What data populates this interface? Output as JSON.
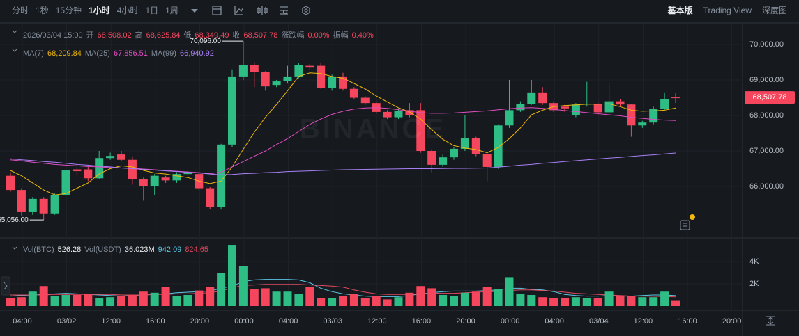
{
  "toolbar": {
    "intervals": [
      "分时",
      "1秒",
      "15分钟",
      "1小时",
      "4小时",
      "1日",
      "1周"
    ],
    "active": "1小时",
    "views": [
      "基本版",
      "Trading View",
      "深度图"
    ],
    "active_view": "基本版"
  },
  "chart_data": {
    "type": "candlestick",
    "watermark": "BINANCE",
    "legend": {
      "time": "2026/03/04 15:00",
      "items": [
        [
          "开",
          "68,508.02"
        ],
        [
          "高",
          "68,625.84"
        ],
        [
          "低",
          "68,349.49"
        ],
        [
          "收",
          "68,507.78"
        ],
        [
          "涨跌幅",
          "0.00%"
        ],
        [
          "振幅",
          "0.40%"
        ]
      ],
      "ma": [
        [
          "MA(7)",
          "68,209.84"
        ],
        [
          "MA(25)",
          "67,856.51"
        ],
        [
          "MA(99)",
          "66,940.92"
        ]
      ],
      "vol": [
        [
          "Vol(BTC)",
          "526.28"
        ],
        [
          "Vol(USDT)",
          "36.023M"
        ]
      ],
      "vol_ma": [
        "942.09",
        "824.65"
      ]
    },
    "high_label": "70,096.00",
    "low_label": "65,056.00",
    "last_price_label": "68,507.78",
    "up_color": "#2ebd85",
    "down_color": "#f6465d",
    "ylim": [
      64588,
      70569
    ],
    "yticks": [
      {
        "value": 70000,
        "label": "70,000.00"
      },
      {
        "value": 69000,
        "label": "69,000.00"
      },
      {
        "value": 68000,
        "label": "68,000.00"
      },
      {
        "value": 67000,
        "label": "67,000.00"
      },
      {
        "value": 66000,
        "label": "66,000.00"
      }
    ],
    "vlim": [
      0,
      5940
    ],
    "vticks": [
      {
        "value": 4000,
        "label": "4K"
      },
      {
        "value": 2000,
        "label": "2K"
      }
    ],
    "xticks": [
      "04:00",
      "03/02",
      "12:00",
      "16:00",
      "20:00",
      "00:00",
      "04:00",
      "03/03",
      "12:00",
      "16:00",
      "20:00",
      "00:00",
      "04:00",
      "03/04",
      "12:00",
      "16:00",
      "20:00"
    ],
    "open": [
      66300,
      65900,
      65275,
      65650,
      65240,
      65760,
      66480,
      66480,
      66230,
      66800,
      66900,
      66750,
      66200,
      66000,
      66250,
      66170,
      66350,
      66350,
      65950,
      65420,
      67180,
      69100,
      69430,
      69220,
      68860,
      68960,
      69100,
      69400,
      69400,
      68780,
      69100,
      68750,
      68500,
      68350,
      68100,
      67950,
      68150,
      68150,
      67000,
      66610,
      66820,
      67060,
      67370,
      66920,
      66550,
      67720,
      68150,
      68330,
      68650,
      68350,
      68250,
      68020,
      68310,
      68330,
      68090,
      68400,
      68310,
      67720,
      67800,
      68190,
      68508.02
    ],
    "high": [
      66400,
      65950,
      65700,
      65700,
      65800,
      66700,
      66650,
      66550,
      67000,
      66950,
      67000,
      66850,
      66250,
      66350,
      66300,
      66400,
      66450,
      66400,
      65980,
      67200,
      69300,
      70096,
      69500,
      69250,
      69000,
      69400,
      69480,
      69450,
      69480,
      69150,
      69200,
      68800,
      68550,
      68400,
      68150,
      68200,
      68350,
      68350,
      67050,
      66900,
      67100,
      68000,
      67400,
      66950,
      67750,
      69000,
      68400,
      69000,
      68800,
      68400,
      68300,
      68350,
      68950,
      68380,
      68900,
      68450,
      68330,
      67850,
      68250,
      68650,
      68625.84
    ],
    "low": [
      65850,
      65180,
      65200,
      65056,
      65200,
      65700,
      66300,
      66150,
      66200,
      66750,
      66700,
      66050,
      65600,
      65750,
      66100,
      66100,
      66300,
      65900,
      65350,
      65350,
      67100,
      69000,
      68800,
      68700,
      68800,
      68900,
      69050,
      69300,
      68750,
      68700,
      68700,
      68450,
      68300,
      68050,
      67900,
      67900,
      67950,
      66950,
      66400,
      66550,
      66750,
      67000,
      66850,
      66150,
      66500,
      67650,
      68100,
      68300,
      68300,
      68100,
      68100,
      67950,
      68250,
      68000,
      68050,
      68250,
      67400,
      67650,
      67750,
      68150,
      68349.49
    ],
    "close": [
      65900,
      65275,
      65650,
      65240,
      65760,
      66450,
      66430,
      66230,
      66800,
      66860,
      66750,
      66200,
      66000,
      66300,
      66170,
      66350,
      66400,
      65950,
      65420,
      67180,
      69100,
      69430,
      69220,
      68820,
      68960,
      69100,
      69430,
      69350,
      68780,
      69100,
      68750,
      68500,
      68350,
      68100,
      67950,
      68120,
      68020,
      67000,
      66610,
      66820,
      67060,
      67370,
      66920,
      66550,
      67720,
      68150,
      68330,
      68650,
      68350,
      68150,
      68200,
      68310,
      68330,
      68090,
      68400,
      68310,
      67720,
      67800,
      68190,
      68470,
      68507.78
    ],
    "volume": [
      700,
      800,
      1300,
      1800,
      900,
      1000,
      1000,
      1100,
      700,
      800,
      900,
      1000,
      1300,
      1200,
      1700,
      900,
      1000,
      1400,
      1700,
      3000,
      5500,
      3600,
      1500,
      1600,
      1300,
      1300,
      1100,
      1700,
      700,
      700,
      900,
      1100,
      700,
      900,
      600,
      800,
      1200,
      1800,
      1600,
      1000,
      900,
      1200,
      1300,
      1700,
      1500,
      2600,
      1100,
      1000,
      800,
      700,
      700,
      800,
      700,
      700,
      1300,
      900,
      900,
      800,
      800,
      1300,
      526.28
    ],
    "ma_lines": [
      {
        "name": "MA(7)",
        "color": "#f0b90b",
        "values": [
          66450,
          66300,
          66100,
          65900,
          65760,
          65800,
          65950,
          66100,
          66350,
          66500,
          66580,
          66550,
          66450,
          66380,
          66350,
          66300,
          66250,
          66150,
          66080,
          66150,
          66550,
          67050,
          67530,
          67950,
          68310,
          68700,
          69100,
          69200,
          69180,
          69100,
          69050,
          68900,
          68750,
          68550,
          68380,
          68220,
          68100,
          67900,
          67600,
          67330,
          67150,
          67080,
          67040,
          66950,
          67100,
          67350,
          67650,
          68020,
          68150,
          68250,
          68280,
          68300,
          68320,
          68320,
          68330,
          68250,
          68150,
          68120,
          68130,
          68150,
          68209.84
        ]
      },
      {
        "name": "MA(25)",
        "color": "#e04dc2",
        "values": [
          66750,
          66720,
          66680,
          66650,
          66620,
          66600,
          66580,
          66560,
          66550,
          66530,
          66520,
          66510,
          66490,
          66470,
          66450,
          66430,
          66410,
          66390,
          66360,
          66400,
          66550,
          66700,
          66850,
          67000,
          67180,
          67350,
          67550,
          67750,
          67900,
          68030,
          68120,
          68180,
          68210,
          68220,
          68200,
          68160,
          68120,
          68080,
          68060,
          68060,
          68070,
          68090,
          68110,
          68130,
          68160,
          68190,
          68210,
          68220,
          68200,
          68170,
          68140,
          68110,
          68080,
          68050,
          68020,
          67990,
          67950,
          67920,
          67890,
          67870,
          67856.51
        ]
      },
      {
        "name": "MA(99)",
        "color": "#a97ff5",
        "values": [
          66780,
          66750,
          66730,
          66700,
          66680,
          66650,
          66620,
          66600,
          66570,
          66550,
          66520,
          66500,
          66480,
          66460,
          66440,
          66420,
          66400,
          66380,
          66350,
          66330,
          66340,
          66360,
          66370,
          66390,
          66400,
          66420,
          66430,
          66440,
          66450,
          66460,
          66470,
          66475,
          66480,
          66485,
          66490,
          66495,
          66500,
          66500,
          66500,
          66505,
          66510,
          66510,
          66515,
          66520,
          66545,
          66570,
          66600,
          66620,
          66650,
          66675,
          66700,
          66725,
          66750,
          66775,
          66800,
          66820,
          66845,
          66870,
          66890,
          66915,
          66940.92
        ]
      }
    ],
    "vol_ma_lines": [
      {
        "color": "#5bc8e6",
        "values": [
          900,
          950,
          1000,
          1050,
          1100,
          1150,
          1100,
          1050,
          1000,
          950,
          900,
          950,
          1000,
          1050,
          1100,
          1200,
          1250,
          1300,
          1350,
          1600,
          1800,
          2200,
          2350,
          2400,
          2400,
          2400,
          2350,
          2100,
          1600,
          1300,
          1100,
          1000,
          900,
          850,
          850,
          850,
          950,
          1100,
          1200,
          1300,
          1350,
          1350,
          1350,
          1400,
          1450,
          1600,
          1600,
          1500,
          1450,
          1300,
          1050,
          950,
          900,
          900,
          950,
          900,
          900,
          950,
          1000,
          1000,
          942.09
        ]
      },
      {
        "color": "#e0485f",
        "values": [
          1000,
          1000,
          1000,
          1000,
          1050,
          1050,
          1050,
          1050,
          1050,
          1050,
          1000,
          1000,
          1000,
          1050,
          1050,
          1100,
          1100,
          1150,
          1200,
          1350,
          1650,
          1850,
          1900,
          1950,
          1950,
          1950,
          1950,
          1900,
          1850,
          1800,
          1700,
          1450,
          1250,
          1100,
          1050,
          1050,
          1050,
          1100,
          1150,
          1150,
          1150,
          1200,
          1250,
          1300,
          1300,
          1400,
          1450,
          1450,
          1400,
          1350,
          1250,
          1150,
          1100,
          1050,
          1000,
          950,
          900,
          900,
          880,
          860,
          824.65
        ]
      }
    ]
  }
}
